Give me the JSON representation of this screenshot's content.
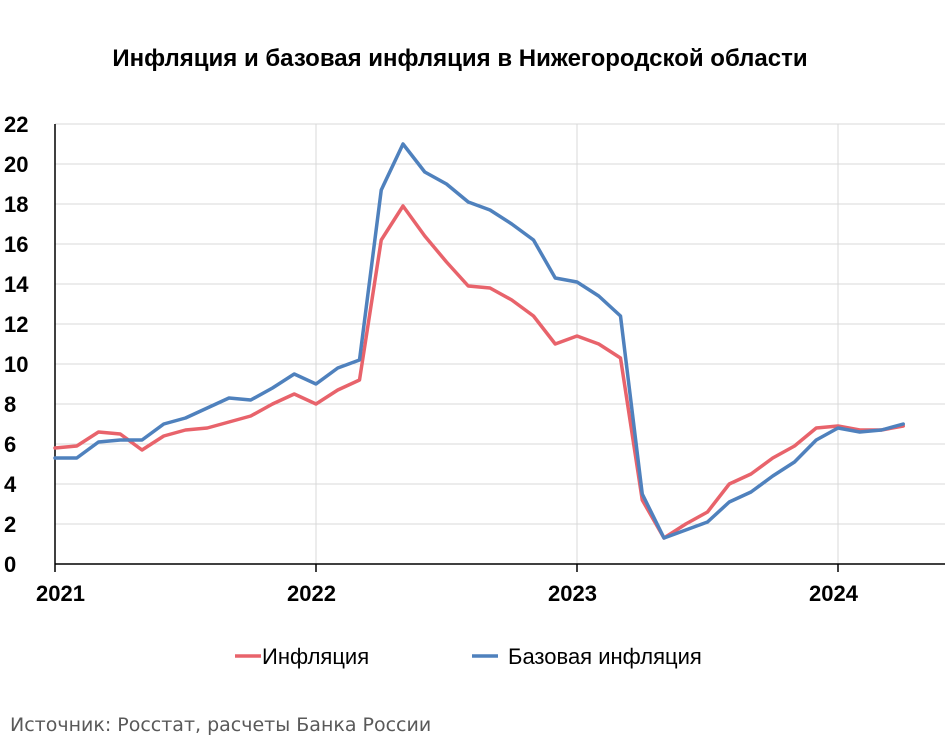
{
  "chart_data": {
    "type": "line",
    "title": "Инфляция и базовая инфляция в Нижегородской области",
    "xlabel": "",
    "ylabel": "",
    "ylim": [
      0,
      22
    ],
    "yticks": [
      "0",
      "2",
      "4",
      "6",
      "8",
      "10",
      "12",
      "14",
      "16",
      "18",
      "20",
      "22"
    ],
    "x_tick_labels": [
      "2021",
      "2022",
      "2023",
      "2024"
    ],
    "x_range_months": [
      0,
      40
    ],
    "grid": true,
    "legend_position": "bottom",
    "colors": {
      "inflation": "#E8636B",
      "core": "#4F81BD",
      "grid": "#D9D9D9",
      "axis": "#000000"
    },
    "months": [
      0,
      1,
      2,
      3,
      4,
      5,
      6,
      7,
      8,
      9,
      10,
      11,
      12,
      13,
      14,
      15,
      16,
      17,
      18,
      19,
      20,
      21,
      22,
      23,
      24,
      25,
      26,
      27,
      28,
      29,
      30,
      31,
      32,
      33,
      34,
      35,
      36,
      37,
      38,
      39
    ],
    "series": [
      {
        "name": "Инфляция",
        "color": "#E8636B",
        "values": [
          5.8,
          5.9,
          6.6,
          6.5,
          5.7,
          6.4,
          6.7,
          6.8,
          7.1,
          7.4,
          8.0,
          8.5,
          8.0,
          8.7,
          9.2,
          16.2,
          17.9,
          16.4,
          15.1,
          13.9,
          13.8,
          13.2,
          12.4,
          11.0,
          11.4,
          11.0,
          10.3,
          3.2,
          1.3,
          2.0,
          2.6,
          4.0,
          4.5,
          5.3,
          5.9,
          6.8,
          6.9,
          6.7,
          6.7,
          6.9
        ]
      },
      {
        "name": "Базовая инфляция",
        "color": "#4F81BD",
        "values": [
          5.3,
          5.3,
          6.1,
          6.2,
          6.2,
          7.0,
          7.3,
          7.8,
          8.3,
          8.2,
          8.8,
          9.5,
          9.0,
          9.8,
          10.2,
          18.7,
          21.0,
          19.6,
          19.0,
          18.1,
          17.7,
          17.0,
          16.2,
          14.3,
          14.1,
          13.4,
          12.4,
          3.5,
          1.3,
          1.7,
          2.1,
          3.1,
          3.6,
          4.4,
          5.1,
          6.2,
          6.8,
          6.6,
          6.7,
          7.0
        ]
      }
    ]
  },
  "source_note": "Источник: Росстат, расчеты Банка России"
}
